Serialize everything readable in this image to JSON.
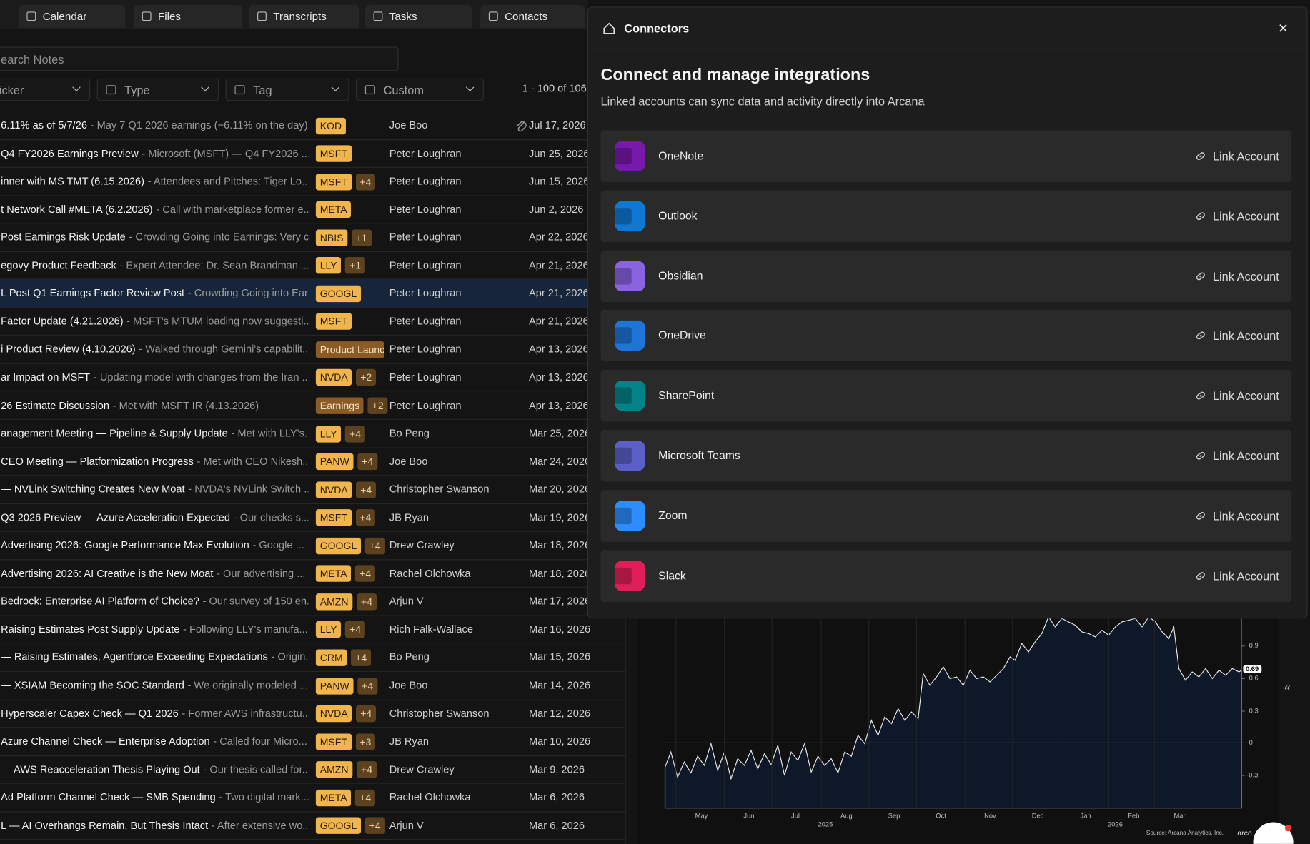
{
  "tabs": [
    "Calendar",
    "Files",
    "Transcripts",
    "Tasks",
    "Contacts"
  ],
  "search": {
    "placeholder": "earch Notes"
  },
  "filters": [
    "icker",
    "Type",
    "Tag",
    "Custom"
  ],
  "pagination": "1 - 100 of 106",
  "notes": [
    {
      "title": "6.11% as of 5/7/26",
      "summary": "- May 7 Q1 2026 earnings (−6.11% on the day)....",
      "tags": [
        "KOD"
      ],
      "author": "Joe Boo",
      "date": "Jul 17, 2026",
      "attachment": true
    },
    {
      "title": "Q4 FY2026 Earnings Preview",
      "summary": "- Microsoft (MSFT) — Q4 FY2026 ...",
      "tags": [
        "MSFT"
      ],
      "author": "Peter Loughran",
      "date": "Jun 25, 2026"
    },
    {
      "title": "inner with MS TMT (6.15.2026)",
      "summary": "- Attendees and Pitches: Tiger Lo...",
      "tags": [
        "MSFT",
        "+4"
      ],
      "author": "Peter Loughran",
      "date": "Jun 15, 2026"
    },
    {
      "title": "t Network Call #META (6.2.2026)",
      "summary": "- Call with marketplace former e...",
      "tags": [
        "META"
      ],
      "author": "Peter Loughran",
      "date": "Jun 2, 2026"
    },
    {
      "title": "Post Earnings Risk Update",
      "summary": "- Crowding Going into Earnings: Very c...",
      "tags": [
        "NBIS",
        "+1"
      ],
      "author": "Peter Loughran",
      "date": "Apr 22, 2026"
    },
    {
      "title": "egovy Product Feedback",
      "summary": "- Expert Attendee: Dr. Sean Brandman ...",
      "tags": [
        "LLY",
        "+1"
      ],
      "author": "Peter Loughran",
      "date": "Apr 21, 2026"
    },
    {
      "title": "L Post Q1 Earnings Factor Review Post",
      "summary": "- Crowding Going into Ear...",
      "tags": [
        "GOOGL"
      ],
      "author": "Peter Loughran",
      "date": "Apr 21, 2026",
      "selected": true
    },
    {
      "title": "Factor Update (4.21.2026)",
      "summary": "- MSFT's MTUM loading now suggesti...",
      "tags": [
        "MSFT"
      ],
      "author": "Peter Loughran",
      "date": "Apr 21, 2026"
    },
    {
      "title": "i Product Review (4.10.2026)",
      "summary": "- Walked through Gemini's capabilit...",
      "tags": [
        "Product Launc"
      ],
      "author": "Peter Loughran",
      "date": "Apr 13, 2026"
    },
    {
      "title": "ar Impact on MSFT",
      "summary": "- Updating model with changes from the Iran ...",
      "tags": [
        "NVDA",
        "+2"
      ],
      "author": "Peter Loughran",
      "date": "Apr 13, 2026"
    },
    {
      "title": "26 Estimate Discussion",
      "summary": "- Met with MSFT IR (4.13.2026)",
      "tags": [
        "Earnings",
        "+2"
      ],
      "author": "Peter Loughran",
      "date": "Apr 13, 2026"
    },
    {
      "title": "anagement Meeting — Pipeline & Supply Update",
      "summary": "- Met with LLY's...",
      "tags": [
        "LLY",
        "+4"
      ],
      "author": "Bo Peng",
      "date": "Mar 25, 2026"
    },
    {
      "title": "CEO Meeting — Platformization Progress",
      "summary": "- Met with CEO Nikesh...",
      "tags": [
        "PANW",
        "+4"
      ],
      "author": "Joe Boo",
      "date": "Mar 24, 2026"
    },
    {
      "title": "— NVLink Switching Creates New Moat",
      "summary": "- NVDA's NVLink Switch ...",
      "tags": [
        "NVDA",
        "+4"
      ],
      "author": "Christopher Swanson",
      "date": "Mar 20, 2026"
    },
    {
      "title": "Q3 2026 Preview — Azure Acceleration Expected",
      "summary": "- Our checks s...",
      "tags": [
        "MSFT",
        "+4"
      ],
      "author": "JB Ryan",
      "date": "Mar 19, 2026"
    },
    {
      "title": "Advertising 2026: Google Performance Max Evolution",
      "summary": "- Google ...",
      "tags": [
        "GOOGL",
        "+4"
      ],
      "author": "Drew Crawley",
      "date": "Mar 18, 2026"
    },
    {
      "title": "Advertising 2026: AI Creative is the New Moat",
      "summary": "- Our advertising ...",
      "tags": [
        "META",
        "+4"
      ],
      "author": "Rachel Olchowka",
      "date": "Mar 18, 2026"
    },
    {
      "title": "Bedrock: Enterprise AI Platform of Choice?",
      "summary": "- Our survey of 150 en...",
      "tags": [
        "AMZN",
        "+4"
      ],
      "author": "Arjun V",
      "date": "Mar 17, 2026"
    },
    {
      "title": "Raising Estimates Post Supply Update",
      "summary": "- Following LLY's manufa...",
      "tags": [
        "LLY",
        "+4"
      ],
      "author": "Rich Falk-Wallace",
      "date": "Mar 16, 2026"
    },
    {
      "title": "— Raising Estimates, Agentforce Exceeding Expectations",
      "summary": "- Origin...",
      "tags": [
        "CRM",
        "+4"
      ],
      "author": "Bo Peng",
      "date": "Mar 15, 2026"
    },
    {
      "title": "— XSIAM Becoming the SOC Standard",
      "summary": "- We originally modeled ...",
      "tags": [
        "PANW",
        "+4"
      ],
      "author": "Joe Boo",
      "date": "Mar 14, 2026"
    },
    {
      "title": "Hyperscaler Capex Check — Q1 2026",
      "summary": "- Former AWS infrastructu...",
      "tags": [
        "NVDA",
        "+4"
      ],
      "author": "Christopher Swanson",
      "date": "Mar 12, 2026"
    },
    {
      "title": "Azure Channel Check — Enterprise Adoption",
      "summary": "- Called four Micro...",
      "tags": [
        "MSFT",
        "+3"
      ],
      "author": "JB Ryan",
      "date": "Mar 10, 2026"
    },
    {
      "title": "— AWS Reacceleration Thesis Playing Out",
      "summary": "- Our thesis called for...",
      "tags": [
        "AMZN",
        "+4"
      ],
      "author": "Drew Crawley",
      "date": "Mar 9, 2026"
    },
    {
      "title": "Ad Platform Channel Check — SMB Spending",
      "summary": "- Two digital mark...",
      "tags": [
        "META",
        "+4"
      ],
      "author": "Rachel Olchowka",
      "date": "Mar 6, 2026"
    },
    {
      "title": "L — AI Overhangs Remain, But Thesis Intact",
      "summary": "- After extensive wo...",
      "tags": [
        "GOOGL",
        "+4"
      ],
      "author": "Arjun V",
      "date": "Mar 6, 2026"
    }
  ],
  "chart": {
    "yticks": [
      "0.9",
      "0.6",
      "0.3",
      "0",
      "-0.3"
    ],
    "current": "0.69",
    "months": [
      "May",
      "Jun",
      "Jul",
      "Aug",
      "Sep",
      "Oct",
      "Nov",
      "Dec",
      "Jan",
      "Feb",
      "Mar"
    ],
    "years": [
      "2025",
      "2026"
    ],
    "source": "Source: Arcana Analytics, Inc.",
    "logo": "arco"
  },
  "collapse": "«",
  "modal": {
    "title": "Connectors",
    "close": "×",
    "heading": "Connect and manage integrations",
    "subheading": "Linked accounts can sync data and activity directly into Arcana",
    "action_label": "Link Account",
    "connectors": [
      {
        "name": "OneNote",
        "color": "#7719aa"
      },
      {
        "name": "Outlook",
        "color": "#0f78d4"
      },
      {
        "name": "Obsidian",
        "color": "#8a63e0"
      },
      {
        "name": "OneDrive",
        "color": "#1f74d8"
      },
      {
        "name": "SharePoint",
        "color": "#038387"
      },
      {
        "name": "Microsoft Teams",
        "color": "#5b5fc7"
      },
      {
        "name": "Zoom",
        "color": "#2d8cff"
      },
      {
        "name": "Slack",
        "color": "#e01e5a"
      }
    ]
  }
}
